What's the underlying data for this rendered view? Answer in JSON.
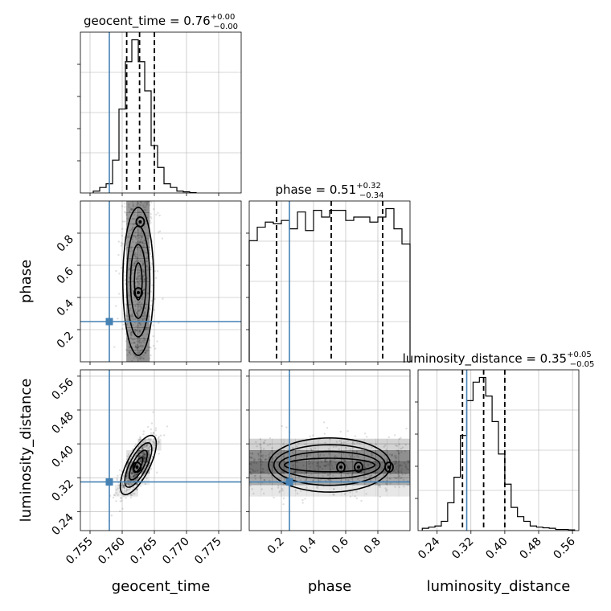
{
  "chart_data": {
    "type": "corner",
    "parameters": [
      "geocent_time",
      "phase",
      "luminosity_distance"
    ],
    "ranges": {
      "geocent_time": [
        0.7535,
        0.7785
      ],
      "phase": [
        0.0,
        1.0
      ],
      "luminosity_distance": [
        0.195,
        0.575
      ]
    },
    "truths": {
      "geocent_time": 0.758,
      "phase": 0.25,
      "luminosity_distance": 0.31
    },
    "truth_color": "#4682b4",
    "quantiles": {
      "geocent_time": [
        0.7607,
        0.7627,
        0.765
      ],
      "phase": [
        0.17,
        0.51,
        0.83
      ],
      "luminosity_distance": [
        0.3,
        0.35,
        0.4
      ]
    },
    "titles": {
      "geocent_time": {
        "name": "geocent_time",
        "value": "0.76",
        "plus": "+0.00",
        "minus": "−0.00"
      },
      "phase": {
        "name": "phase",
        "value": "0.51",
        "plus": "+0.32",
        "minus": "−0.34"
      },
      "luminosity_distance": {
        "name": "luminosity_distance",
        "value": "0.35",
        "plus": "+0.05",
        "minus": "−0.05"
      }
    },
    "ticks": {
      "geocent_time": {
        "values": [
          0.755,
          0.76,
          0.765,
          0.77,
          0.775
        ],
        "labels": [
          "0.755",
          "0.760",
          "0.765",
          "0.770",
          "0.775"
        ]
      },
      "phase": {
        "values": [
          0.2,
          0.4,
          0.6,
          0.8
        ],
        "labels": [
          "0.2",
          "0.4",
          "0.6",
          "0.8"
        ]
      },
      "luminosity_distance": {
        "values": [
          0.24,
          0.32,
          0.4,
          0.48,
          0.56
        ],
        "labels": [
          "0.24",
          "0.32",
          "0.40",
          "0.48",
          "0.56"
        ]
      }
    },
    "histograms": {
      "geocent_time": {
        "edges": [
          0.7555,
          0.7565,
          0.7575,
          0.7585,
          0.7595,
          0.7605,
          0.7615,
          0.7625,
          0.7635,
          0.7645,
          0.7655,
          0.7665,
          0.7675,
          0.7685,
          0.7695,
          0.7705,
          0.7715
        ],
        "counts": [
          0.5,
          1.5,
          2.5,
          9,
          23,
          36,
          42,
          36,
          28,
          13,
          7,
          2.5,
          1.5,
          0.5,
          0.3,
          0.1
        ]
      },
      "phase": {
        "edges": [
          0.0,
          0.05,
          0.1,
          0.15,
          0.2,
          0.25,
          0.3,
          0.35,
          0.4,
          0.45,
          0.5,
          0.55,
          0.6,
          0.65,
          0.7,
          0.75,
          0.8,
          0.85,
          0.9,
          0.95,
          1.0
        ],
        "counts": [
          72,
          80,
          83,
          82,
          84,
          79,
          89,
          78,
          90,
          86,
          90,
          90,
          84,
          86,
          86,
          83,
          86,
          91,
          79,
          70
        ]
      },
      "luminosity_distance": {
        "edges": [
          0.205,
          0.22,
          0.235,
          0.25,
          0.265,
          0.28,
          0.295,
          0.31,
          0.325,
          0.34,
          0.355,
          0.37,
          0.385,
          0.4,
          0.415,
          0.43,
          0.445,
          0.46,
          0.475,
          0.49,
          0.505,
          0.52,
          0.535,
          0.55,
          0.565
        ],
        "counts": [
          1,
          1.5,
          2,
          4,
          12,
          23,
          41,
          56,
          64,
          66,
          58,
          47,
          33,
          20,
          10,
          6,
          4,
          2,
          1.5,
          1.2,
          1,
          0.5,
          0.5,
          0.3
        ]
      }
    },
    "joint": {
      "phase_vs_geocent_time": {
        "mean": [
          0.7625,
          0.5
        ],
        "sd": [
          0.0012,
          0.28
        ],
        "rho": 0.0,
        "modes": [
          [
            0.7625,
            0.43
          ],
          [
            0.7628,
            0.87
          ]
        ]
      },
      "luminosity_distance_vs_geocent_time": {
        "mean": [
          0.7625,
          0.35
        ],
        "sd": [
          0.0014,
          0.035
        ],
        "rho": 0.72,
        "modes": [
          [
            0.7623,
            0.345
          ]
        ]
      },
      "luminosity_distance_vs_phase": {
        "mean": [
          0.5,
          0.35
        ],
        "sd": [
          0.3,
          0.032
        ],
        "rho": 0.0,
        "modes": [
          [
            0.57,
            0.345
          ],
          [
            0.68,
            0.345
          ],
          [
            0.87,
            0.345
          ]
        ]
      }
    },
    "contour_levels_sigma": [
      0.5,
      1.0,
      1.5,
      2.0
    ]
  }
}
